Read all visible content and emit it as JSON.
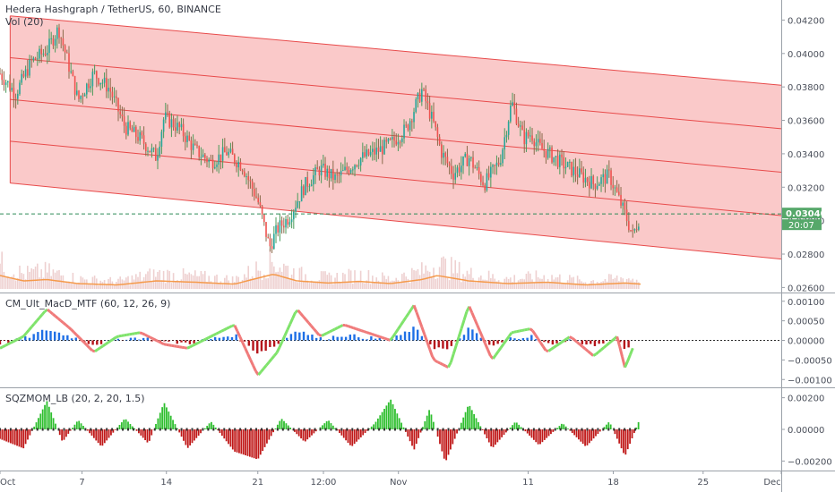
{
  "header": {
    "symbol_line": "Hedera Hashgraph / TetherUS, 60, BINANCE",
    "volume_label": "Vol (20)"
  },
  "last_price": {
    "label": "0.03040",
    "value": 0.0304,
    "countdown": "20:07"
  },
  "x_axis": {
    "ticks": [
      {
        "label": "Oct",
        "pos": 0
      },
      {
        "label": "7",
        "pos": 0.105
      },
      {
        "label": "14",
        "pos": 0.213
      },
      {
        "label": "21",
        "pos": 0.33
      },
      {
        "label": "12:00",
        "pos": 0.414
      },
      {
        "label": "Nov",
        "pos": 0.51
      },
      {
        "label": "11",
        "pos": 0.676
      },
      {
        "label": "18",
        "pos": 0.785
      },
      {
        "label": "25",
        "pos": 0.9
      },
      {
        "label": "Dec",
        "pos": 1.0
      }
    ]
  },
  "colors": {
    "up": "#26a69a",
    "down": "#ef5350",
    "channel_fill": "#f7a5a5",
    "channel_line": "#e84b4b",
    "volume_ma": "#f59a4b",
    "macd_green": "#7fe36b",
    "macd_red": "#f07a7a",
    "hist_blue": "#1e6fe6",
    "hist_red": "#b5141a",
    "sqz_green": "#2fbf2f",
    "sqz_red": "#c01818",
    "last_price_bg": "#56a86a"
  },
  "chart_data": [
    {
      "type": "line",
      "title": "Hedera Hashgraph / TetherUS, 60, BINANCE",
      "ylim": [
        0.0257,
        0.0432
      ],
      "y_ticks": [
        0.026,
        0.028,
        0.03,
        0.032,
        0.034,
        0.036,
        0.038,
        0.04,
        0.042
      ],
      "y_tick_labels": [
        "0.02600",
        "0.02800",
        "0.03000",
        "0.03200",
        "0.03400",
        "0.03600",
        "0.03800",
        "0.04000",
        "0.04200"
      ],
      "series": [
        {
          "x": [
            0,
            0.02,
            0.04,
            0.06,
            0.075,
            0.085,
            0.1,
            0.12,
            0.14,
            0.16,
            0.18,
            0.2,
            0.21,
            0.23,
            0.25,
            0.27,
            0.29,
            0.31,
            0.33,
            0.345,
            0.355,
            0.37,
            0.39,
            0.41,
            0.43,
            0.46,
            0.48,
            0.5,
            0.52,
            0.54,
            0.555,
            0.565,
            0.58,
            0.6,
            0.62,
            0.64,
            0.655,
            0.67,
            0.68,
            0.69,
            0.7,
            0.72,
            0.74,
            0.76,
            0.78,
            0.8,
            0.81,
            0.82
          ],
          "values": [
            0.0388,
            0.0376,
            0.0395,
            0.0402,
            0.0415,
            0.0398,
            0.0372,
            0.0388,
            0.0379,
            0.0356,
            0.0349,
            0.0338,
            0.0362,
            0.0355,
            0.0342,
            0.0335,
            0.0341,
            0.0333,
            0.0312,
            0.0284,
            0.0295,
            0.0302,
            0.0321,
            0.0331,
            0.0325,
            0.0337,
            0.0341,
            0.0346,
            0.0355,
            0.0378,
            0.0358,
            0.0341,
            0.0328,
            0.0338,
            0.0322,
            0.0336,
            0.0371,
            0.0349,
            0.0352,
            0.0344,
            0.0341,
            0.0334,
            0.0328,
            0.0322,
            0.0327,
            0.0304,
            0.0291,
            0.0304
          ]
        }
      ],
      "channel": {
        "x": [
          0.013,
          1.0
        ],
        "top": [
          0.04225,
          0.0381
        ],
        "mid_upper": [
          0.03975,
          0.0355
        ],
        "mid_lower": [
          0.03725,
          0.0329
        ],
        "bottom_inner": [
          0.03475,
          0.0303
        ],
        "bottom": [
          0.03225,
          0.0277
        ]
      }
    },
    {
      "type": "line",
      "title": "Vol (20)",
      "series": [
        {
          "name": "Vol (20)",
          "x": [
            0,
            0.03,
            0.06,
            0.1,
            0.15,
            0.2,
            0.25,
            0.3,
            0.35,
            0.38,
            0.42,
            0.46,
            0.5,
            0.54,
            0.56,
            0.6,
            0.65,
            0.7,
            0.75,
            0.8,
            0.82
          ],
          "values": [
            0.5,
            0.3,
            0.35,
            0.2,
            0.15,
            0.3,
            0.25,
            0.18,
            0.55,
            0.3,
            0.22,
            0.28,
            0.2,
            0.35,
            0.5,
            0.3,
            0.2,
            0.25,
            0.15,
            0.22,
            0.18
          ]
        }
      ]
    },
    {
      "type": "line",
      "title": "CM_Ult_MacD_MTF (60, 12, 26, 9)",
      "ylim": [
        -0.0012,
        0.0012
      ],
      "y_ticks": [
        0.001,
        0.0005,
        0.0,
        -0.0005,
        -0.001
      ],
      "y_tick_labels": [
        "0.00100",
        "0.00050",
        "0.00000",
        "−0.00050",
        "−0.00100"
      ],
      "series": [
        {
          "x": [
            0,
            0.03,
            0.06,
            0.09,
            0.12,
            0.15,
            0.18,
            0.21,
            0.24,
            0.27,
            0.3,
            0.33,
            0.355,
            0.38,
            0.41,
            0.44,
            0.47,
            0.5,
            0.53,
            0.555,
            0.575,
            0.6,
            0.63,
            0.655,
            0.68,
            0.7,
            0.73,
            0.76,
            0.79,
            0.8,
            0.81
          ],
          "values": [
            -0.0002,
            0.0001,
            0.0008,
            0.0003,
            -0.0003,
            0.0001,
            0.0002,
            -0.0001,
            -0.0002,
            0.0001,
            0.0004,
            -0.0009,
            -0.0003,
            0.0008,
            0.0001,
            0.0004,
            0.0002,
            0.0,
            0.0009,
            -0.0005,
            -0.0007,
            0.0009,
            -0.0005,
            0.0002,
            0.0003,
            -0.0003,
            0.0001,
            -0.0004,
            0.0001,
            -0.0007,
            -0.0002
          ]
        }
      ]
    },
    {
      "type": "bar",
      "title": "SQZMOM_LB (20, 2, 20, 1.5)",
      "ylim": [
        -0.0026,
        0.0026
      ],
      "y_ticks": [
        0.002,
        0.0,
        -0.002
      ],
      "y_tick_labels": [
        "0.00200",
        "0.00000",
        "−0.00200"
      ],
      "series": [
        {
          "x": [
            0,
            0.03,
            0.06,
            0.08,
            0.1,
            0.13,
            0.16,
            0.19,
            0.21,
            0.24,
            0.27,
            0.3,
            0.33,
            0.36,
            0.39,
            0.42,
            0.45,
            0.48,
            0.5,
            0.53,
            0.55,
            0.57,
            0.6,
            0.63,
            0.66,
            0.69,
            0.72,
            0.75,
            0.78,
            0.8,
            0.82
          ],
          "values": [
            -0.0006,
            -0.0012,
            0.0018,
            -0.0008,
            0.0006,
            -0.0011,
            0.0007,
            -0.0009,
            0.0017,
            -0.0012,
            0.0005,
            -0.0014,
            -0.0019,
            0.0007,
            -0.0008,
            0.0006,
            -0.0011,
            0.0004,
            0.0019,
            -0.0013,
            0.0013,
            -0.0021,
            0.0016,
            -0.0012,
            0.0005,
            -0.001,
            0.0004,
            -0.0011,
            0.0005,
            -0.0017,
            0.0008
          ]
        }
      ]
    }
  ],
  "panes": {
    "macd_title": "CM_Ult_MacD_MTF (60, 12, 26, 9)",
    "sqz_title": "SQZMOM_LB (20, 2, 20, 1.5)"
  }
}
